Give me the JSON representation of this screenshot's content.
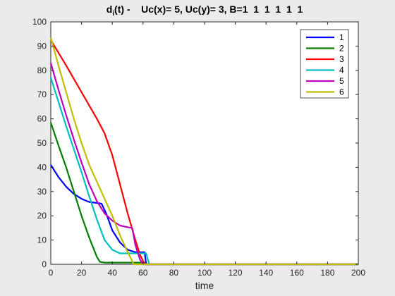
{
  "chart_data": {
    "type": "line",
    "title_main": "d",
    "title_sub": "i",
    "title_rest": "(t) -    Uc(x)= 5, Uc(y)= 3, B=1  1  1  1  1  1",
    "xlabel": "time",
    "ylabel": "",
    "xlim": [
      0,
      200
    ],
    "ylim": [
      0,
      100
    ],
    "xticks": [
      0,
      20,
      40,
      60,
      80,
      100,
      120,
      140,
      160,
      180,
      200
    ],
    "yticks": [
      0,
      10,
      20,
      30,
      40,
      50,
      60,
      70,
      80,
      90,
      100
    ],
    "grid": false,
    "legend_position": "top-right",
    "series": [
      {
        "name": "1",
        "color": "#0000ff",
        "points": [
          [
            0,
            41
          ],
          [
            5,
            36
          ],
          [
            10,
            32
          ],
          [
            15,
            29
          ],
          [
            20,
            27
          ],
          [
            25,
            25.7
          ],
          [
            30,
            25.3
          ],
          [
            33,
            25
          ],
          [
            36,
            21
          ],
          [
            40,
            14
          ],
          [
            45,
            9
          ],
          [
            50,
            6
          ],
          [
            55,
            5
          ],
          [
            60,
            5
          ],
          [
            61,
            5
          ],
          [
            62,
            0
          ],
          [
            200,
            0
          ]
        ]
      },
      {
        "name": "2",
        "color": "#008000",
        "points": [
          [
            0,
            58.5
          ],
          [
            5,
            49
          ],
          [
            10,
            40
          ],
          [
            15,
            30
          ],
          [
            20,
            20
          ],
          [
            25,
            11
          ],
          [
            30,
            3
          ],
          [
            32,
            1
          ],
          [
            35,
            0.7
          ],
          [
            40,
            0.7
          ],
          [
            55,
            0.7
          ],
          [
            61,
            0.7
          ],
          [
            62,
            0
          ],
          [
            200,
            0
          ]
        ]
      },
      {
        "name": "3",
        "color": "#ff0000",
        "points": [
          [
            0,
            92.5
          ],
          [
            10,
            82
          ],
          [
            20,
            71
          ],
          [
            30,
            60
          ],
          [
            35,
            54
          ],
          [
            40,
            45
          ],
          [
            45,
            33
          ],
          [
            50,
            21
          ],
          [
            55,
            10
          ],
          [
            58,
            4
          ],
          [
            61,
            0
          ],
          [
            200,
            0
          ]
        ]
      },
      {
        "name": "4",
        "color": "#00bfbf",
        "points": [
          [
            0,
            77
          ],
          [
            5,
            67
          ],
          [
            10,
            57
          ],
          [
            15,
            47.5
          ],
          [
            20,
            38
          ],
          [
            25,
            28
          ],
          [
            30,
            18.5
          ],
          [
            35,
            10
          ],
          [
            40,
            6
          ],
          [
            45,
            4.5
          ],
          [
            50,
            4.5
          ],
          [
            60,
            4.5
          ],
          [
            62,
            4.5
          ],
          [
            64,
            0
          ],
          [
            200,
            0
          ]
        ]
      },
      {
        "name": "5",
        "color": "#bf00bf",
        "points": [
          [
            0,
            83
          ],
          [
            5,
            72
          ],
          [
            10,
            61.5
          ],
          [
            15,
            51.5
          ],
          [
            20,
            42
          ],
          [
            25,
            33
          ],
          [
            30,
            26
          ],
          [
            35,
            21
          ],
          [
            40,
            18
          ],
          [
            45,
            16
          ],
          [
            50,
            15.3
          ],
          [
            53,
            15
          ],
          [
            55,
            8
          ],
          [
            58,
            2
          ],
          [
            60,
            0
          ],
          [
            200,
            0
          ]
        ]
      },
      {
        "name": "6",
        "color": "#bfbf00",
        "points": [
          [
            0,
            93.5
          ],
          [
            5,
            82
          ],
          [
            10,
            71
          ],
          [
            15,
            60
          ],
          [
            20,
            50
          ],
          [
            25,
            41
          ],
          [
            30,
            34
          ],
          [
            35,
            27
          ],
          [
            40,
            20
          ],
          [
            45,
            12
          ],
          [
            50,
            5
          ],
          [
            54,
            0
          ],
          [
            200,
            0
          ]
        ]
      }
    ]
  }
}
